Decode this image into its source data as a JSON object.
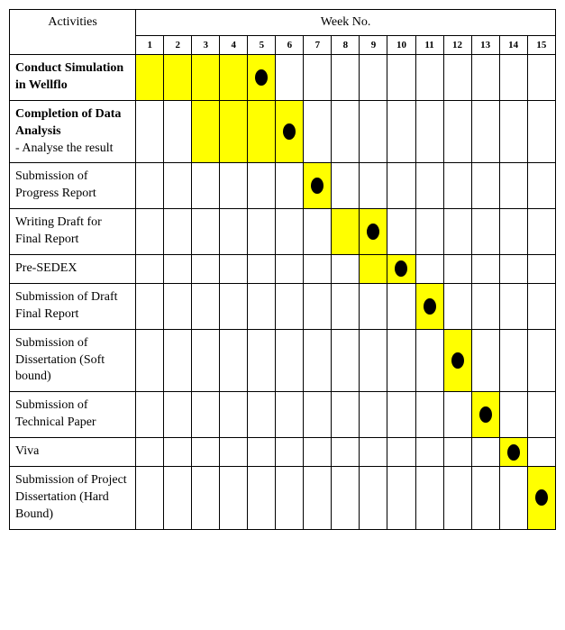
{
  "headers": {
    "activities": "Activities",
    "week": "Week No."
  },
  "weeks": [
    "1",
    "2",
    "3",
    "4",
    "5",
    "6",
    "7",
    "8",
    "9",
    "10",
    "11",
    "12",
    "13",
    "14",
    "15"
  ],
  "rows": [
    {
      "label_html": "<span class='bold'>Conduct Simulation in Wellflo</span>",
      "fill": [
        1,
        2,
        3,
        4,
        5
      ],
      "marker": 5
    },
    {
      "label_html": "<span class='bold'>Completion of Data Analysis</span><br>- Analyse the result",
      "fill": [
        3,
        4,
        5,
        6
      ],
      "marker": 6
    },
    {
      "label_html": "Submission of Progress Report",
      "fill": [
        7
      ],
      "marker": 7
    },
    {
      "label_html": "Writing Draft for Final Report",
      "fill": [
        8,
        9
      ],
      "marker": 9
    },
    {
      "label_html": "Pre-SEDEX",
      "fill": [
        9,
        10
      ],
      "marker": 10
    },
    {
      "label_html": "Submission of Draft Final Report",
      "fill": [
        11
      ],
      "marker": 11
    },
    {
      "label_html": "Submission of Dissertation (Soft bound)",
      "fill": [
        12
      ],
      "marker": 12
    },
    {
      "label_html": "Submission of Technical Paper",
      "fill": [
        13
      ],
      "marker": 13
    },
    {
      "label_html": "Viva",
      "fill": [
        14
      ],
      "marker": 14
    },
    {
      "label_html": "Submission of Project Dissertation (Hard Bound)",
      "fill": [
        15
      ],
      "marker": 15
    }
  ],
  "colors": {
    "fill": "#ffff00",
    "marker": "#000000",
    "border": "#000000",
    "background": "#ffffff"
  }
}
